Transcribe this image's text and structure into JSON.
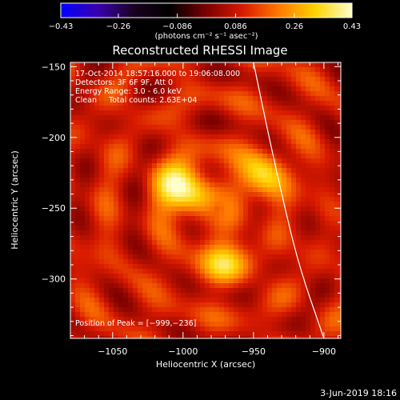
{
  "chart_data": {
    "type": "heatmap",
    "title": "Reconstructed RHESSI Image",
    "xlabel": "Heliocentric X (arcsec)",
    "ylabel": "Heliocentric Y (arcsec)",
    "xlim": [
      -1080,
      -888
    ],
    "ylim": [
      -342,
      -147
    ],
    "x_ticks": [
      -1050,
      -1000,
      -950,
      -900
    ],
    "x_tick_labels": [
      "−1050",
      "−1000",
      "−950",
      "−900"
    ],
    "y_ticks": [
      -150,
      -200,
      -250,
      -300
    ],
    "y_tick_labels": [
      "−150",
      "−200",
      "−250",
      "−300"
    ],
    "colorbar": {
      "range": [
        -0.43,
        0.43
      ],
      "ticks": [
        -0.43,
        -0.26,
        -0.086,
        0.086,
        0.26,
        0.43
      ],
      "tick_labels": [
        "−0.43",
        "−0.26",
        "−0.086",
        "0.086",
        "0.26",
        "0.43"
      ],
      "units_label": "(photons cm⁻² s⁻¹ asec⁻²)"
    },
    "sources": [
      {
        "x": -1000,
        "y": -236,
        "peak": 0.43
      },
      {
        "x": -945,
        "y": -228,
        "peak": 0.32
      },
      {
        "x": -971,
        "y": -286,
        "peak": 0.3
      }
    ],
    "background_level": 0.1,
    "limb_curve": [
      [
        -950,
        -147
      ],
      [
        -940,
        -195
      ],
      [
        -930,
        -240
      ],
      [
        -918,
        -290
      ],
      [
        -900,
        -342
      ]
    ],
    "info_lines": [
      "17-Oct-2014 18:57:16.000 to 19:06:08.000",
      "Detectors: 3F 6F 9F, Att 0",
      "Energy Range: 3.0 - 6.0 keV",
      "Clean     Total counts: 2.63E+04"
    ],
    "peak_text": "Position of Peak = [−999,−236]",
    "timestamp": "3-Jun-2019 18:16"
  },
  "colors": {
    "colormap": [
      "#0000ff",
      "#3a00b0",
      "#1a0020",
      "#000000",
      "#7a0000",
      "#d81a00",
      "#ff7a00",
      "#ffd400",
      "#ffffcc"
    ],
    "limb": "#ffffff",
    "background": "#000000",
    "text": "#ffffff"
  }
}
